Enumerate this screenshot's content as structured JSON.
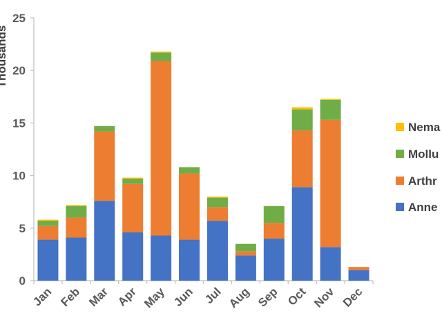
{
  "chart_data": {
    "type": "bar",
    "stacked": true,
    "title": "",
    "xlabel": "",
    "ylabel": "Thousands",
    "ylim": [
      0,
      25
    ],
    "yticks": [
      0,
      5,
      10,
      15,
      20,
      25
    ],
    "grid": false,
    "legend_position": "right",
    "categories": [
      "Jan",
      "Feb",
      "Mar",
      "Apr",
      "May",
      "Jun",
      "Jul",
      "Aug",
      "Sep",
      "Oct",
      "Nov",
      "Dec"
    ],
    "series": [
      {
        "name": "Anne",
        "color": "#4472C4",
        "values": [
          3.9,
          4.1,
          7.6,
          4.6,
          4.3,
          3.9,
          5.7,
          2.4,
          4.0,
          8.9,
          3.2,
          1.0
        ]
      },
      {
        "name": "Arthr",
        "color": "#ED7D31",
        "values": [
          1.3,
          1.9,
          6.6,
          4.6,
          16.6,
          6.3,
          1.3,
          0.4,
          1.5,
          5.4,
          12.1,
          0.3
        ]
      },
      {
        "name": "Mollu",
        "color": "#70AD47",
        "values": [
          0.5,
          1.1,
          0.5,
          0.5,
          0.8,
          0.6,
          0.9,
          0.7,
          1.6,
          2.0,
          1.9,
          0.0
        ]
      },
      {
        "name": "Nema",
        "color": "#FFC000",
        "values": [
          0.1,
          0.1,
          0.0,
          0.1,
          0.1,
          0.0,
          0.1,
          0.0,
          0.0,
          0.2,
          0.1,
          0.0
        ]
      }
    ]
  }
}
